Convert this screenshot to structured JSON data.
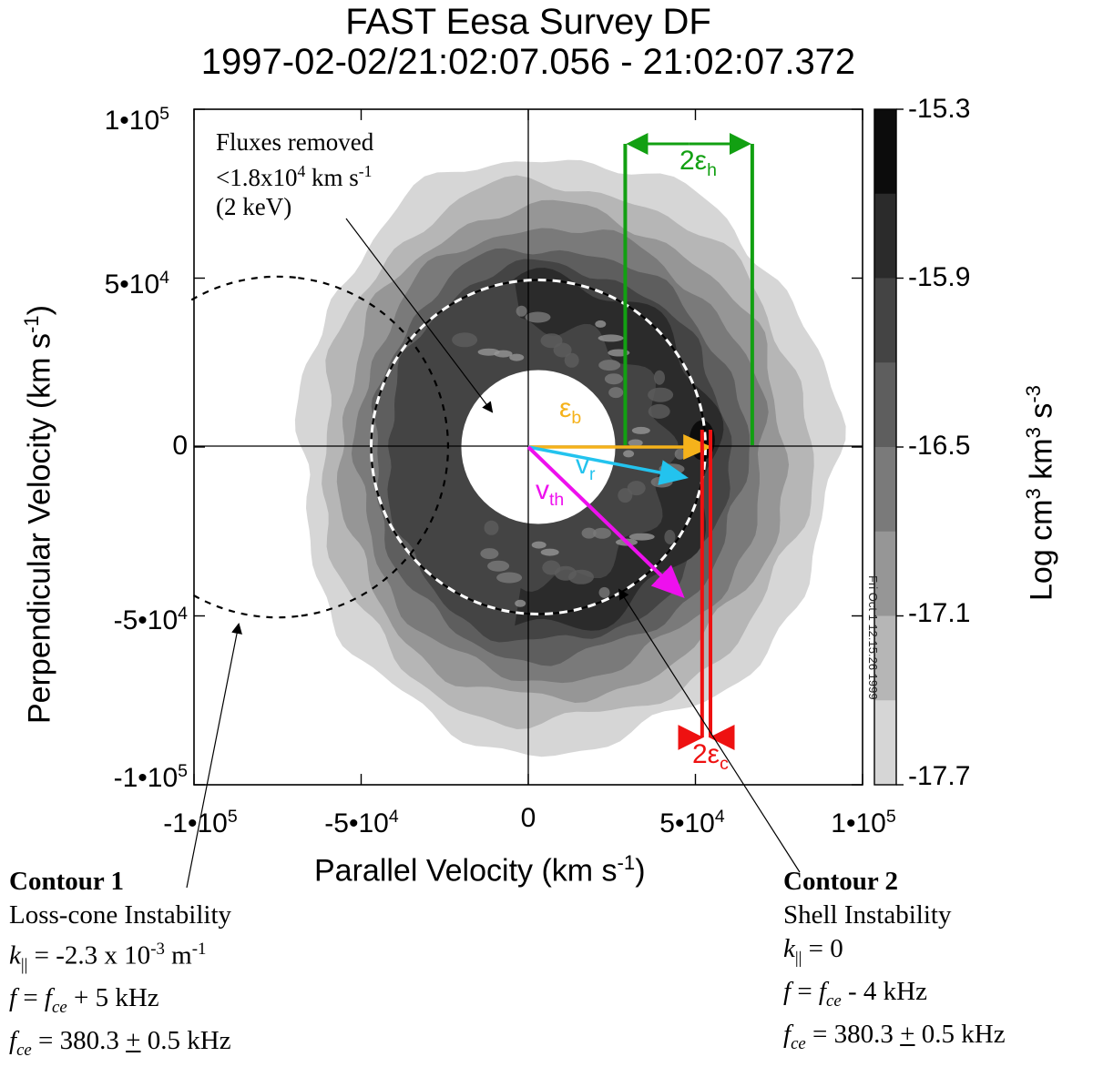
{
  "title": {
    "line1": "FAST  Eesa Survey DF",
    "line2": "1997-02-02/21:02:07.056 - 21:02:07.372"
  },
  "chart_data": {
    "type": "contour",
    "xlabel": "Parallel Velocity (km s",
    "xlabel_exp": "-1",
    "xlabel_end": ")",
    "ylabel": "Perpendicular Velocity (km s",
    "ylabel_exp": "-1",
    "ylabel_end": ")",
    "xlim": [
      -100000,
      100000
    ],
    "ylim": [
      -100000,
      100000
    ],
    "x_ticks": [
      {
        "value": -100000,
        "mant": "-1•10",
        "exp": "5"
      },
      {
        "value": -50000,
        "mant": "-5•10",
        "exp": "4"
      },
      {
        "value": 0,
        "mant": "0",
        "exp": ""
      },
      {
        "value": 50000,
        "mant": "5•10",
        "exp": "4"
      },
      {
        "value": 100000,
        "mant": "1•10",
        "exp": "5"
      }
    ],
    "y_ticks": [
      {
        "value": 100000,
        "mant": "1•10",
        "exp": "5"
      },
      {
        "value": 50000,
        "mant": "5•10",
        "exp": "4"
      },
      {
        "value": 0,
        "mant": "0",
        "exp": ""
      },
      {
        "value": -50000,
        "mant": "-5•10",
        "exp": "4"
      },
      {
        "value": -100000,
        "mant": "-1•10",
        "exp": "5"
      }
    ],
    "colorbar": {
      "label": "Log cm",
      "label_exp1": "3",
      "label_mid": " km",
      "label_exp2": "3",
      "label_mid2": " s",
      "label_exp3": "-3",
      "range": [
        -17.7,
        -15.3
      ],
      "ticks": [
        "-15.3",
        "-15.9",
        "-16.5",
        "-17.1",
        "-17.7"
      ],
      "levels": [
        "#ffffff",
        "#d6d6d6",
        "#b6b6b6",
        "#969696",
        "#7a7a7a",
        "#5e5e5e",
        "#444444",
        "#2b2b2b",
        "#0c0c0c"
      ]
    },
    "removed_radius": 18000,
    "shell_center_x": 3000,
    "shell_radius": 50000,
    "losscone_center_x": -75000,
    "losscone_radius": 51000,
    "vectors": [
      {
        "name": "eps_b",
        "label": "ε",
        "sub": "b",
        "color": "#f5b21b",
        "to": [
          54000,
          0
        ]
      },
      {
        "name": "v_r",
        "label": "v",
        "sub": "r",
        "color": "#23c3ee",
        "to": [
          47000,
          -9000
        ]
      },
      {
        "name": "v_th",
        "label": "v",
        "sub": "th",
        "color": "#ee10ee",
        "to": [
          46000,
          -44000
        ]
      }
    ],
    "eps_h_label": "2ε",
    "eps_h_sub": "h",
    "eps_h_range": [
      29000,
      67000
    ],
    "eps_c_label": "2ε",
    "eps_c_sub": "c",
    "eps_c_x": [
      52000,
      54500
    ],
    "annotation_removed": {
      "line1": "Fluxes removed",
      "line2a": "<1.8x10",
      "line2exp": "4",
      "line2b": " km s",
      "line2exp2": "-1",
      "line3": "(2 keV)"
    },
    "stamp": "Fri Oct  1 12:15:26 1999"
  },
  "contour1": {
    "title": "Contour 1",
    "name": "Loss-cone Instability",
    "k_lhs": "k",
    "k_sub": "||",
    "k_rhs": " = -2.3 x 10",
    "k_exp": "-3",
    "k_unit": " m",
    "k_unit_exp": "-1",
    "f_lhs": "f",
    "f_eq": " = ",
    "f_fce": "f",
    "f_fce_sub": "ce",
    "f_rhs": " + 5 kHz",
    "fce_lhs": "f",
    "fce_sub": "ce",
    "fce_rhs1": " = 380.3 ",
    "fce_pm": "+",
    "fce_rhs2": " 0.5 kHz"
  },
  "contour2": {
    "title": "Contour 2",
    "name": "Shell Instability",
    "k_lhs": "k",
    "k_sub": "||",
    "k_rhs": " = 0",
    "f_lhs": "f",
    "f_eq": " = ",
    "f_fce": "f",
    "f_fce_sub": "ce",
    "f_rhs": " - 4 kHz",
    "fce_lhs": "f",
    "fce_sub": "ce",
    "fce_rhs1": " = 380.3 ",
    "fce_pm": "+",
    "fce_rhs2": " 0.5 kHz"
  }
}
